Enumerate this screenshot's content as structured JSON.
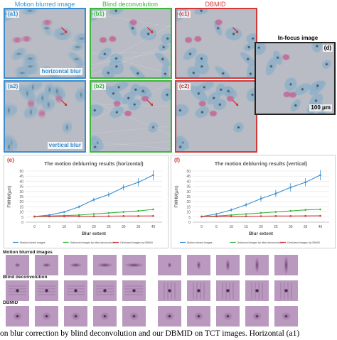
{
  "columns": {
    "motion": "Motion blurred image",
    "blind": "Blind deconvolution",
    "dbmid": "DBMID"
  },
  "colors": {
    "blue": "#3a8ed0",
    "green": "#3cb53c",
    "red": "#d23a3a"
  },
  "panels": {
    "a1": "(a1)",
    "b1": "(b1)",
    "c1": "(c1)",
    "a2": "(a2)",
    "b2": "(b2)",
    "c2": "(c2)",
    "d": "(d)"
  },
  "blur_tags": {
    "horizontal": "horizontal blur",
    "vertical": "vertical blur"
  },
  "infocus": {
    "title": "In-focus image",
    "scalebar": "100 μm"
  },
  "charts": {
    "e_label": "(e)",
    "f_label": "(f)"
  },
  "chart_data": [
    {
      "type": "line",
      "title": "The motion deblurring results (horizontal)",
      "xlabel": "Blur extent",
      "ylabel": "FWHM(μm)",
      "x": [
        0,
        5,
        10,
        15,
        20,
        25,
        30,
        35,
        40
      ],
      "ylim": [
        0,
        50
      ],
      "yticks": [
        0,
        5,
        10,
        15,
        20,
        25,
        30,
        35,
        40,
        45,
        50
      ],
      "series": [
        {
          "name": "Motion blurred images",
          "color": "#3a8ed0",
          "values": [
            5.5,
            7,
            10,
            15,
            22,
            27,
            34,
            39,
            46
          ],
          "err": [
            0.5,
            0.7,
            1,
            1.5,
            2,
            2.5,
            3,
            4,
            5
          ]
        },
        {
          "name": "Deblurred images by blind deconvolution",
          "color": "#3cb53c",
          "values": [
            5.5,
            6,
            6.5,
            7,
            8,
            9,
            10,
            11,
            12.5
          ],
          "err": [
            0.3,
            0.3,
            0.4,
            0.4,
            0.5,
            0.5,
            0.6,
            0.6,
            0.8
          ]
        },
        {
          "name": "Deblurred images by DBMID",
          "color": "#d23a3a",
          "values": [
            5.5,
            5.6,
            5.7,
            5.8,
            5.8,
            5.9,
            6,
            6,
            6.1
          ],
          "err": [
            0.2,
            0.2,
            0.2,
            0.2,
            0.2,
            0.2,
            0.2,
            0.2,
            0.2
          ]
        }
      ],
      "legend": "bottom"
    },
    {
      "type": "line",
      "title": "The motion deblurring results (vertical)",
      "xlabel": "Blur extent",
      "ylabel": "FWHM(μm)",
      "x": [
        0,
        5,
        10,
        15,
        20,
        25,
        30,
        35,
        40
      ],
      "ylim": [
        0,
        50
      ],
      "yticks": [
        0,
        5,
        10,
        15,
        20,
        25,
        30,
        35,
        40,
        45,
        50
      ],
      "series": [
        {
          "name": "Motion blurred images",
          "color": "#3a8ed0",
          "values": [
            5.5,
            8,
            12,
            17,
            23,
            28,
            34,
            39,
            46
          ],
          "err": [
            0.5,
            1,
            1.5,
            2,
            3,
            3.5,
            4,
            4,
            5
          ]
        },
        {
          "name": "Deblurred images by blind deconvolution",
          "color": "#3cb53c",
          "values": [
            5.5,
            6,
            7,
            8,
            9,
            10,
            11,
            12,
            12.5
          ],
          "err": [
            0.3,
            0.3,
            0.4,
            0.4,
            0.5,
            0.5,
            0.6,
            0.6,
            0.8
          ]
        },
        {
          "name": "Deblurred images by DBMID",
          "color": "#d23a3a",
          "values": [
            5.5,
            5.6,
            5.7,
            5.8,
            5.9,
            6,
            6,
            6.1,
            6.2
          ],
          "err": [
            0.2,
            0.2,
            0.2,
            0.2,
            0.2,
            0.2,
            0.2,
            0.2,
            0.2
          ]
        }
      ],
      "legend": "bottom"
    }
  ],
  "psf_rows": {
    "motion": "Motion blurred images",
    "blind": "Blind deconvolution",
    "dbmid": "DBMID"
  },
  "caption": "on blur correction by blind deconvolution and our DBMID on TCT images. Horizontal (a1)"
}
